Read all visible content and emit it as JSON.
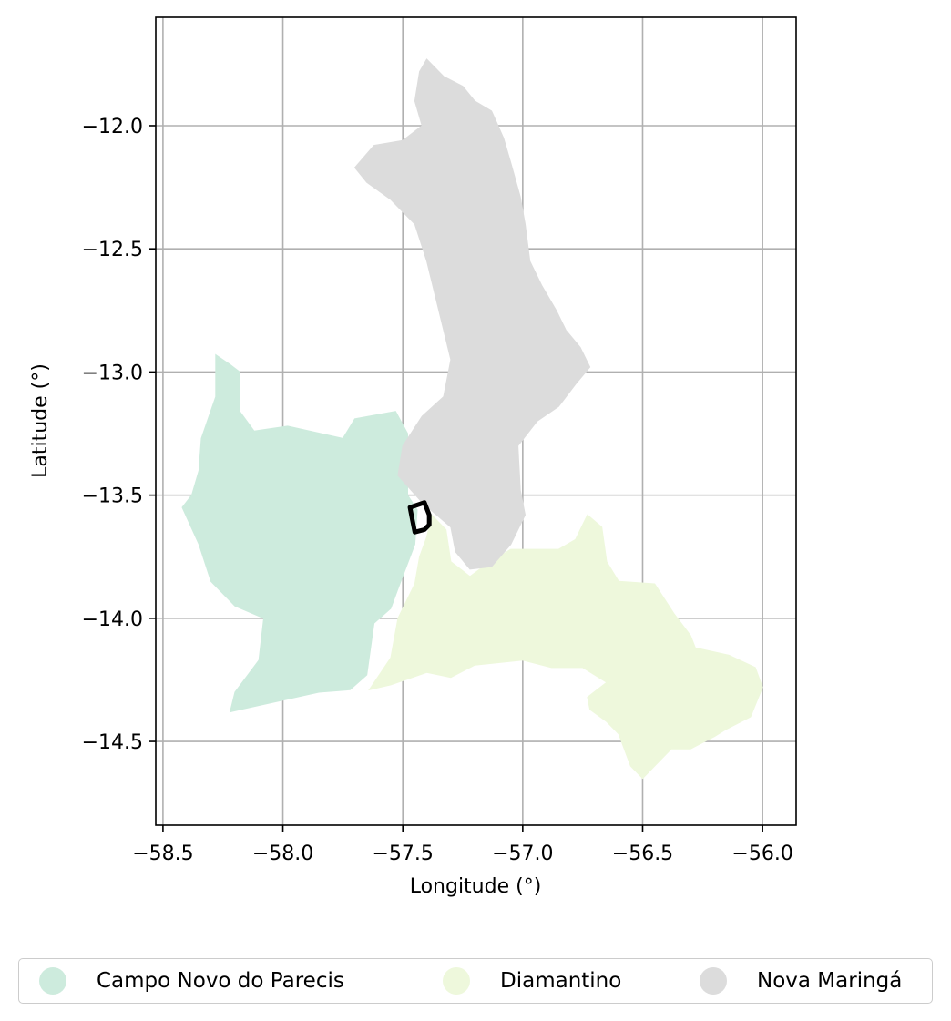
{
  "chart_data": {
    "type": "map",
    "xlabel": "Longitude (°)",
    "ylabel": "Latitude (°)",
    "xlim": [
      -58.53,
      -55.86
    ],
    "ylim": [
      -14.84,
      -11.56
    ],
    "xticks": [
      -58.5,
      -58.0,
      -57.5,
      -57.0,
      -56.5,
      -56.0
    ],
    "xtick_labels": [
      "−58.5",
      "−58.0",
      "−57.5",
      "−57.0",
      "−56.5",
      "−56.0"
    ],
    "yticks": [
      -12.0,
      -12.5,
      -13.0,
      -13.5,
      -14.0,
      -14.5
    ],
    "ytick_labels": [
      "−12.0",
      "−12.5",
      "−13.0",
      "−13.5",
      "−14.0",
      "−14.5"
    ],
    "grid": true,
    "legend_position": "bottom",
    "regions": [
      {
        "name": "Campo Novo do Parecis",
        "color": "#cdebdd",
        "outline": [
          [
            -58.28,
            -12.93
          ],
          [
            -58.22,
            -12.97
          ],
          [
            -58.18,
            -13.0
          ],
          [
            -58.18,
            -13.16
          ],
          [
            -58.12,
            -13.24
          ],
          [
            -57.98,
            -13.22
          ],
          [
            -57.75,
            -13.27
          ],
          [
            -57.7,
            -13.19
          ],
          [
            -57.53,
            -13.16
          ],
          [
            -57.48,
            -13.25
          ],
          [
            -57.48,
            -13.5
          ],
          [
            -57.44,
            -13.56
          ],
          [
            -57.45,
            -13.7
          ],
          [
            -57.52,
            -13.88
          ],
          [
            -57.55,
            -13.96
          ],
          [
            -57.62,
            -14.02
          ],
          [
            -57.65,
            -14.23
          ],
          [
            -57.72,
            -14.29
          ],
          [
            -57.85,
            -14.3
          ],
          [
            -58.22,
            -14.38
          ],
          [
            -58.2,
            -14.3
          ],
          [
            -58.1,
            -14.17
          ],
          [
            -58.08,
            -14.0
          ],
          [
            -58.2,
            -13.95
          ],
          [
            -58.3,
            -13.85
          ],
          [
            -58.35,
            -13.7
          ],
          [
            -58.42,
            -13.55
          ],
          [
            -58.38,
            -13.5
          ],
          [
            -58.35,
            -13.4
          ],
          [
            -58.34,
            -13.27
          ],
          [
            -58.28,
            -13.1
          ],
          [
            -58.28,
            -12.93
          ]
        ]
      },
      {
        "name": "Diamantino",
        "color": "#eef8dc",
        "outline": [
          [
            -57.38,
            -13.58
          ],
          [
            -57.32,
            -13.64
          ],
          [
            -57.3,
            -13.77
          ],
          [
            -57.22,
            -13.83
          ],
          [
            -57.15,
            -13.78
          ],
          [
            -57.05,
            -13.72
          ],
          [
            -56.85,
            -13.72
          ],
          [
            -56.78,
            -13.68
          ],
          [
            -56.73,
            -13.58
          ],
          [
            -56.67,
            -13.63
          ],
          [
            -56.65,
            -13.77
          ],
          [
            -56.6,
            -13.85
          ],
          [
            -56.45,
            -13.86
          ],
          [
            -56.37,
            -13.98
          ],
          [
            -56.3,
            -14.07
          ],
          [
            -56.28,
            -14.12
          ],
          [
            -56.14,
            -14.15
          ],
          [
            -56.03,
            -14.2
          ],
          [
            -56.0,
            -14.28
          ],
          [
            -56.05,
            -14.4
          ],
          [
            -56.15,
            -14.45
          ],
          [
            -56.2,
            -14.48
          ],
          [
            -56.3,
            -14.53
          ],
          [
            -56.38,
            -14.53
          ],
          [
            -56.5,
            -14.65
          ],
          [
            -56.55,
            -14.6
          ],
          [
            -56.6,
            -14.47
          ],
          [
            -56.65,
            -14.42
          ],
          [
            -56.72,
            -14.37
          ],
          [
            -56.73,
            -14.32
          ],
          [
            -56.65,
            -14.26
          ],
          [
            -56.75,
            -14.2
          ],
          [
            -56.88,
            -14.2
          ],
          [
            -57.0,
            -14.17
          ],
          [
            -57.2,
            -14.19
          ],
          [
            -57.3,
            -14.24
          ],
          [
            -57.4,
            -14.22
          ],
          [
            -57.55,
            -14.27
          ],
          [
            -57.64,
            -14.29
          ],
          [
            -57.55,
            -14.16
          ],
          [
            -57.52,
            -14.0
          ],
          [
            -57.45,
            -13.86
          ],
          [
            -57.43,
            -13.75
          ],
          [
            -57.4,
            -13.67
          ],
          [
            -57.38,
            -13.58
          ]
        ]
      },
      {
        "name": "Nova Maringá",
        "color": "#dcdcdc",
        "outline": [
          [
            -57.4,
            -11.73
          ],
          [
            -57.33,
            -11.8
          ],
          [
            -57.25,
            -11.84
          ],
          [
            -57.2,
            -11.9
          ],
          [
            -57.13,
            -11.94
          ],
          [
            -57.08,
            -12.05
          ],
          [
            -57.05,
            -12.15
          ],
          [
            -57.01,
            -12.29
          ],
          [
            -56.99,
            -12.4
          ],
          [
            -56.97,
            -12.55
          ],
          [
            -56.92,
            -12.65
          ],
          [
            -56.86,
            -12.75
          ],
          [
            -56.82,
            -12.83
          ],
          [
            -56.76,
            -12.9
          ],
          [
            -56.72,
            -12.98
          ],
          [
            -56.78,
            -13.05
          ],
          [
            -56.85,
            -13.14
          ],
          [
            -56.94,
            -13.2
          ],
          [
            -57.02,
            -13.3
          ],
          [
            -57.01,
            -13.48
          ],
          [
            -56.99,
            -13.58
          ],
          [
            -57.05,
            -13.7
          ],
          [
            -57.13,
            -13.79
          ],
          [
            -57.22,
            -13.8
          ],
          [
            -57.28,
            -13.73
          ],
          [
            -57.3,
            -13.63
          ],
          [
            -57.36,
            -13.58
          ],
          [
            -57.42,
            -13.53
          ],
          [
            -57.52,
            -13.42
          ],
          [
            -57.5,
            -13.3
          ],
          [
            -57.42,
            -13.18
          ],
          [
            -57.33,
            -13.1
          ],
          [
            -57.3,
            -12.95
          ],
          [
            -57.35,
            -12.75
          ],
          [
            -57.4,
            -12.55
          ],
          [
            -57.45,
            -12.4
          ],
          [
            -57.55,
            -12.3
          ],
          [
            -57.65,
            -12.23
          ],
          [
            -57.7,
            -12.17
          ],
          [
            -57.62,
            -12.08
          ],
          [
            -57.5,
            -12.06
          ],
          [
            -57.42,
            -12.0
          ],
          [
            -57.45,
            -11.9
          ],
          [
            -57.43,
            -11.78
          ],
          [
            -57.4,
            -11.73
          ]
        ]
      }
    ],
    "highlight_outline": [
      [
        -57.47,
        -13.55
      ],
      [
        -57.41,
        -13.53
      ],
      [
        -57.39,
        -13.58
      ],
      [
        -57.39,
        -13.62
      ],
      [
        -57.41,
        -13.64
      ],
      [
        -57.45,
        -13.65
      ],
      [
        -57.46,
        -13.6
      ],
      [
        -57.47,
        -13.55
      ]
    ]
  },
  "legend": {
    "items": [
      {
        "label": "Campo Novo do Parecis",
        "color": "#cdebdd"
      },
      {
        "label": "Diamantino",
        "color": "#eef8dc"
      },
      {
        "label": "Nova Maringá",
        "color": "#dcdcdc"
      }
    ]
  }
}
